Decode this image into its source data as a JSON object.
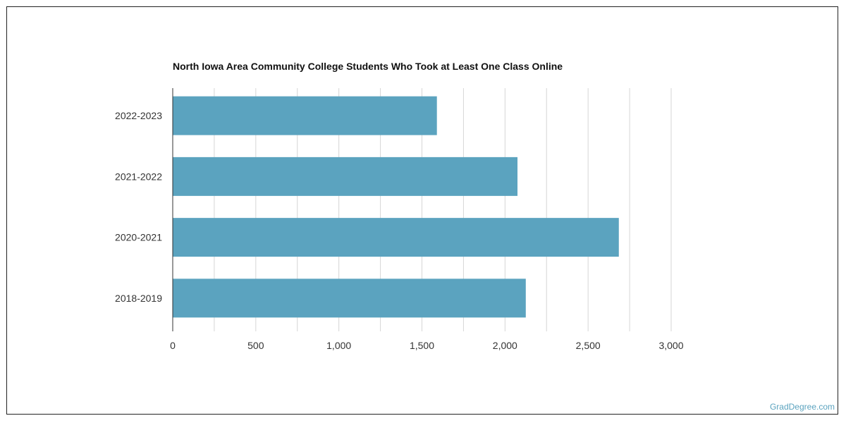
{
  "chart_data": {
    "type": "bar",
    "orientation": "horizontal",
    "title": "North Iowa Area Community College Students Who Took at Least One Class Online",
    "categories": [
      "2022-2023",
      "2021-2022",
      "2020-2021",
      "2018-2019"
    ],
    "values": [
      1590,
      2075,
      2685,
      2125
    ],
    "xlim": [
      0,
      3000
    ],
    "xticks": [
      0,
      500,
      1000,
      1500,
      2000,
      2500,
      3000
    ],
    "xtick_labels": [
      "0",
      "500",
      "1,000",
      "1,500",
      "2,000",
      "2,500",
      "3,000"
    ],
    "xlabel": "",
    "ylabel": "",
    "grid": true,
    "bar_color": "#5ba3bf",
    "grid_color": "#d6d6d6"
  },
  "watermark": "GradDegree.com"
}
